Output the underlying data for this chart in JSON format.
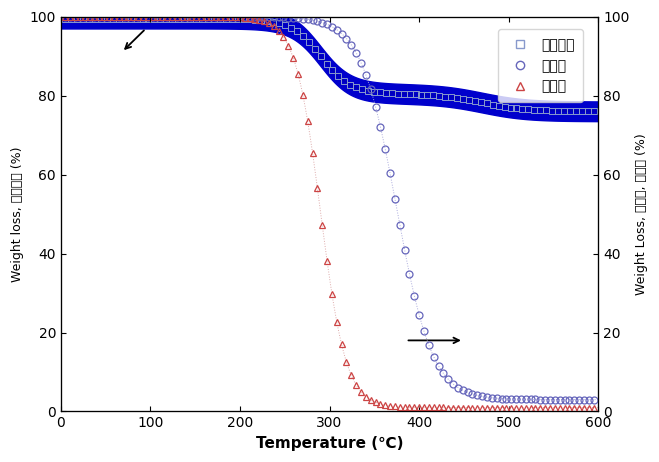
{
  "xlabel": "Temperature (℃)",
  "ylabel_left": "Weight loss, 그린시트 (%)",
  "ylabel_right": "Weight Loss, 바인더, 가소제 (%)",
  "legend_labels": [
    "그린시트",
    "바인더",
    "가소제"
  ],
  "xlim": [
    0,
    600
  ],
  "ylim": [
    0,
    100
  ],
  "xticks": [
    0,
    100,
    200,
    300,
    400,
    500,
    600
  ],
  "yticks": [
    0,
    20,
    40,
    60,
    80,
    100
  ],
  "gs_color": "#0000bb",
  "gs_fill_color": "#0000cc",
  "binder_color": "#7777cc",
  "plasticizer_color": "#cc5555",
  "background": "#ffffff"
}
